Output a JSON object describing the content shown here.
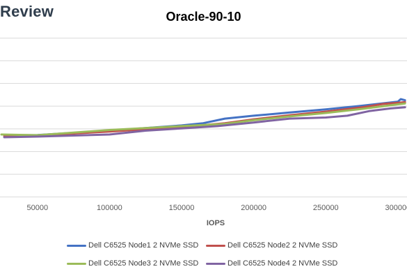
{
  "brand": "Review",
  "chart_data": {
    "type": "line",
    "title": "Oracle-90-10",
    "xlabel": "IOPS",
    "ylabel": "",
    "xlim": [
      25000,
      305000
    ],
    "ylim": [
      0,
      7
    ],
    "x_ticks": [
      50000,
      100000,
      150000,
      200000,
      250000,
      300000
    ],
    "x_tick_labels": [
      "50000",
      "100000",
      "150000",
      "200000",
      "250000",
      "300000"
    ],
    "y_grid_count": 7,
    "grid": true,
    "legend_position": "bottom",
    "series": [
      {
        "name": "Dell C6525 Node1 2 NVMe SSD",
        "color": "#4472c4",
        "points": [
          [
            27000,
            2.72
          ],
          [
            50000,
            2.73
          ],
          [
            100000,
            2.92
          ],
          [
            150000,
            3.15
          ],
          [
            165000,
            3.25
          ],
          [
            180000,
            3.45
          ],
          [
            200000,
            3.58
          ],
          [
            225000,
            3.72
          ],
          [
            250000,
            3.86
          ],
          [
            275000,
            4.02
          ],
          [
            300000,
            4.2
          ],
          [
            302000,
            4.31
          ],
          [
            305000,
            4.26
          ]
        ]
      },
      {
        "name": "Dell C6525 Node2 2 NVMe SSD",
        "color": "#c0504d",
        "points": [
          [
            27000,
            2.67
          ],
          [
            50000,
            2.71
          ],
          [
            100000,
            2.88
          ],
          [
            150000,
            3.08
          ],
          [
            180000,
            3.25
          ],
          [
            200000,
            3.42
          ],
          [
            225000,
            3.6
          ],
          [
            250000,
            3.76
          ],
          [
            275000,
            3.95
          ],
          [
            290000,
            4.1
          ],
          [
            300000,
            4.15
          ],
          [
            305000,
            4.18
          ]
        ]
      },
      {
        "name": "Dell C6525 Node3 2 NVMe SSD",
        "color": "#9bbb59",
        "points": [
          [
            25000,
            2.75
          ],
          [
            50000,
            2.72
          ],
          [
            100000,
            2.95
          ],
          [
            150000,
            3.12
          ],
          [
            180000,
            3.22
          ],
          [
            200000,
            3.38
          ],
          [
            225000,
            3.55
          ],
          [
            250000,
            3.7
          ],
          [
            275000,
            3.88
          ],
          [
            300000,
            4.08
          ],
          [
            305000,
            4.12
          ]
        ]
      },
      {
        "name": "Dell C6525 Node4 2 NVMe SSD",
        "color": "#8064a2",
        "points": [
          [
            27000,
            2.63
          ],
          [
            50000,
            2.66
          ],
          [
            100000,
            2.75
          ],
          [
            125000,
            2.92
          ],
          [
            150000,
            3.02
          ],
          [
            175000,
            3.12
          ],
          [
            200000,
            3.28
          ],
          [
            225000,
            3.45
          ],
          [
            250000,
            3.5
          ],
          [
            265000,
            3.58
          ],
          [
            280000,
            3.78
          ],
          [
            295000,
            3.9
          ],
          [
            305000,
            3.95
          ]
        ]
      }
    ]
  }
}
